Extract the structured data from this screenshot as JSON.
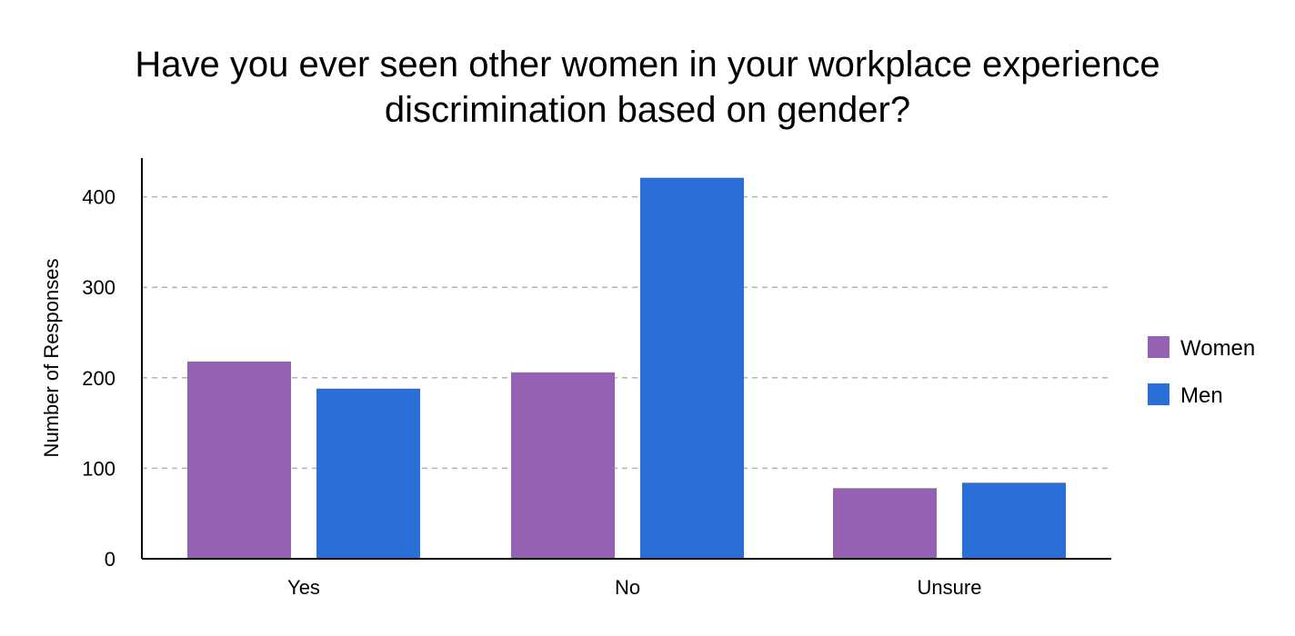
{
  "chart_data": {
    "type": "bar",
    "title_lines": [
      "Have you ever seen other women in your workplace experience",
      "discrimination based on gender?"
    ],
    "xlabel": "",
    "ylabel": "Number of Responses",
    "categories": [
      "Yes",
      "No",
      "Unsure"
    ],
    "series": [
      {
        "name": "Women",
        "values": [
          218,
          206,
          78
        ],
        "color": "#9561b2"
      },
      {
        "name": "Men",
        "values": [
          188,
          421,
          84
        ],
        "color": "#2a6fd7"
      }
    ],
    "ylim": [
      0,
      440
    ],
    "yticks": [
      0,
      100,
      200,
      300,
      400
    ],
    "grid": true,
    "legend_position": "right"
  }
}
